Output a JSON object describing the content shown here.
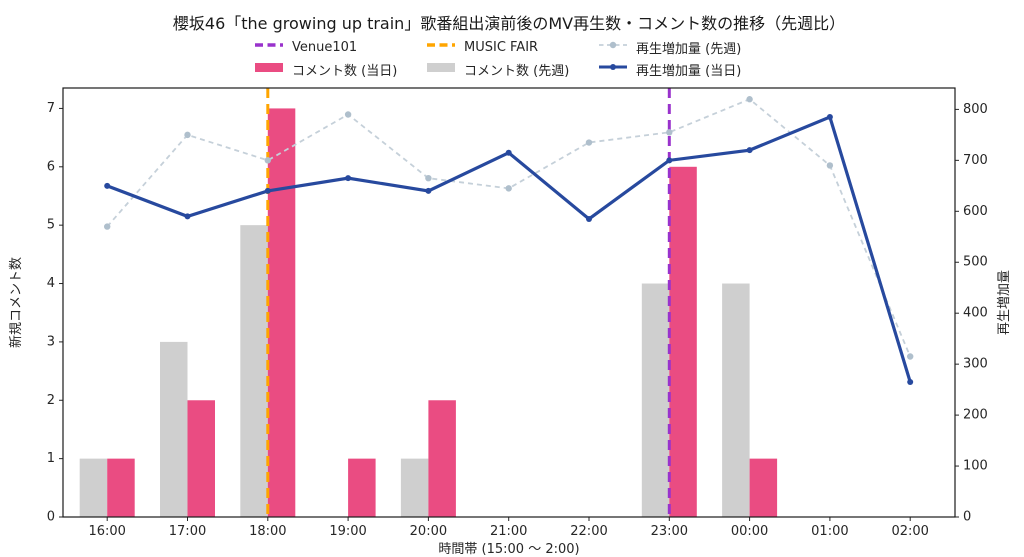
{
  "title": "櫻坂46「the growing up train」歌番組出演前後のMV再生数・コメント数の推移（先週比）",
  "legend": {
    "items": [
      {
        "label": "Venue101",
        "type": "vline",
        "color": "#9932CC"
      },
      {
        "label": "MUSIC FAIR",
        "type": "vline",
        "color": "#FFA500"
      },
      {
        "label": "再生増加量 (先週)",
        "type": "dashed-line",
        "color": "#C5D0D9",
        "marker_color": "#AFBFCC"
      },
      {
        "label": "コメント数 (当日)",
        "type": "bar",
        "color": "#EA4C82"
      },
      {
        "label": "コメント数 (先週)",
        "type": "bar",
        "color": "#CFCFCF"
      },
      {
        "label": "再生増加量 (当日)",
        "type": "solid-line",
        "color": "#27499E"
      }
    ]
  },
  "chart_data": {
    "type": "bar",
    "categories": [
      "16:00",
      "17:00",
      "18:00",
      "19:00",
      "20:00",
      "21:00",
      "22:00",
      "23:00",
      "00:00",
      "01:00",
      "02:00"
    ],
    "series": [
      {
        "name": "コメント数 (先週)",
        "kind": "bar",
        "axis": "left",
        "color": "#CFCFCF",
        "values": [
          1,
          3,
          5,
          0,
          1,
          0,
          0,
          4,
          4,
          0,
          0
        ]
      },
      {
        "name": "コメント数 (当日)",
        "kind": "bar",
        "axis": "left",
        "color": "#EA4C82",
        "values": [
          1,
          2,
          7,
          1,
          2,
          0,
          0,
          6,
          1,
          0,
          0
        ]
      },
      {
        "name": "再生増加量 (先週)",
        "kind": "line",
        "style": "dashed",
        "axis": "right",
        "color": "#C5D0D9",
        "marker_color": "#AFBFCC",
        "values": [
          570,
          750,
          700,
          790,
          665,
          645,
          735,
          755,
          820,
          690,
          315
        ]
      },
      {
        "name": "再生増加量 (当日)",
        "kind": "line",
        "style": "solid",
        "axis": "right",
        "color": "#27499E",
        "marker_color": "#27499E",
        "values": [
          650,
          590,
          640,
          665,
          640,
          715,
          585,
          700,
          720,
          785,
          265
        ]
      }
    ],
    "events": [
      {
        "label": "MUSIC FAIR",
        "category": "18:00",
        "color": "#FFA500"
      },
      {
        "label": "Venue101",
        "category": "23:00",
        "color": "#9932CC"
      }
    ],
    "xlabel": "時間帯 (15:00 ～ 2:00)",
    "ylabel_left": "新規コメント数",
    "ylabel_right": "再生増加量",
    "ylim_left": [
      0,
      7.35
    ],
    "ylim_right": [
      0,
      842
    ],
    "yticks_left": [
      0,
      1,
      2,
      3,
      4,
      5,
      6,
      7
    ],
    "yticks_right": [
      0,
      100,
      200,
      300,
      400,
      500,
      600,
      700,
      800
    ],
    "grid": false,
    "legend_position": "top-center"
  }
}
